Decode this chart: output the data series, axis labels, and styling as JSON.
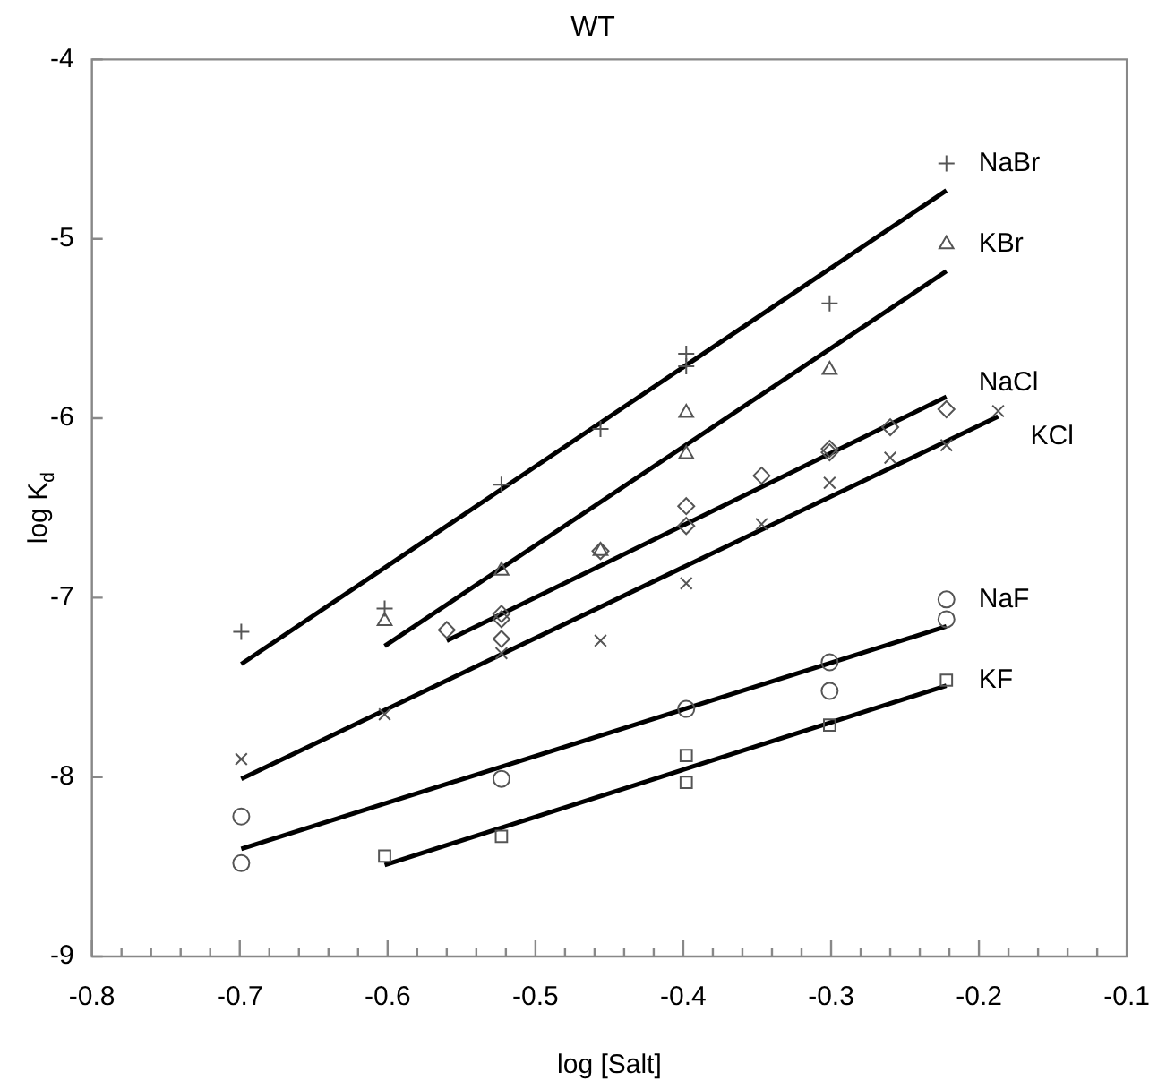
{
  "chart_data": {
    "type": "scatter",
    "title": "WT",
    "xlabel": "log [Salt]",
    "ylabel": "log K$_{d}$",
    "xlim": [
      -0.8,
      -0.1
    ],
    "xticks": [
      -0.8,
      {
        "value": -0.78,
        "label": null
      },
      {
        "value": -0.76,
        "label": null
      },
      {
        "value": -0.74,
        "label": null
      },
      {
        "value": -0.72,
        "label": null
      },
      -0.7,
      {
        "value": -0.68,
        "label": null
      },
      {
        "value": -0.66,
        "label": null
      },
      {
        "value": -0.64,
        "label": null
      },
      {
        "value": -0.62,
        "label": null
      },
      -0.6,
      {
        "value": -0.58,
        "label": null
      },
      {
        "value": -0.56,
        "label": null
      },
      {
        "value": -0.54,
        "label": null
      },
      {
        "value": -0.52,
        "label": null
      },
      -0.5,
      {
        "value": -0.48,
        "label": null
      },
      {
        "value": -0.46,
        "label": null
      },
      {
        "value": -0.44,
        "label": null
      },
      {
        "value": -0.42,
        "label": null
      },
      -0.4,
      {
        "value": -0.38,
        "label": null
      },
      {
        "value": -0.36,
        "label": null
      },
      {
        "value": -0.34,
        "label": null
      },
      {
        "value": -0.32,
        "label": null
      },
      -0.3,
      {
        "value": -0.28,
        "label": null
      },
      {
        "value": -0.26,
        "label": null
      },
      {
        "value": -0.24,
        "label": null
      },
      {
        "value": -0.22,
        "label": null
      },
      -0.2,
      {
        "value": -0.18,
        "label": null
      },
      {
        "value": -0.16,
        "label": null
      },
      {
        "value": -0.14,
        "label": null
      },
      {
        "value": -0.12,
        "label": null
      },
      -0.1
    ],
    "ylim": [
      -9,
      -4
    ],
    "yticks": [
      -9,
      -8,
      -7,
      -6,
      -5,
      -4
    ],
    "series": [
      {
        "type": "scatter",
        "name": "NaBr",
        "marker": "cross",
        "color": "#555555",
        "x": [
          -0.699,
          -0.602,
          -0.523,
          -0.456,
          -0.398,
          -0.398,
          -0.301,
          -0.222
        ],
        "values": [
          -7.19,
          -7.06,
          -6.37,
          -6.06,
          -5.64,
          -5.71,
          -5.36,
          -4.58
        ]
      },
      {
        "type": "scatter",
        "name": "KBr",
        "marker": "triangle",
        "color": "#555555",
        "x": [
          -0.602,
          -0.523,
          -0.456,
          -0.398,
          -0.398,
          -0.301,
          -0.222
        ],
        "values": [
          -7.13,
          -6.85,
          -6.74,
          -5.97,
          -6.2,
          -5.73,
          -5.03
        ]
      },
      {
        "type": "scatter",
        "name": "NaCl",
        "marker": "diamond",
        "color": "#555555",
        "x": [
          -0.56,
          -0.523,
          -0.523,
          -0.523,
          -0.456,
          -0.398,
          -0.398,
          -0.347,
          -0.301,
          -0.301,
          -0.26,
          -0.222
        ],
        "values": [
          -7.18,
          -7.09,
          -7.12,
          -7.23,
          -6.74,
          -6.49,
          -6.6,
          -6.32,
          -6.17,
          -6.19,
          -6.05,
          -5.95
        ]
      },
      {
        "type": "scatter",
        "name": "KCl",
        "marker": "x",
        "color": "#555555",
        "x": [
          -0.699,
          -0.602,
          -0.523,
          -0.456,
          -0.398,
          -0.347,
          -0.301,
          -0.26,
          -0.222,
          -0.187
        ],
        "values": [
          -7.9,
          -7.65,
          -7.31,
          -7.24,
          -6.92,
          -6.59,
          -6.36,
          -6.22,
          -6.15,
          -5.96
        ]
      },
      {
        "type": "scatter",
        "name": "NaF",
        "marker": "circle",
        "color": "#555555",
        "x": [
          -0.699,
          -0.699,
          -0.523,
          -0.398,
          -0.301,
          -0.301,
          -0.222,
          -0.222
        ],
        "values": [
          -8.22,
          -8.48,
          -8.01,
          -7.62,
          -7.36,
          -7.52,
          -7.01,
          -7.12
        ]
      },
      {
        "type": "scatter",
        "name": "KF",
        "marker": "square",
        "color": "#555555",
        "x": [
          -0.602,
          -0.523,
          -0.398,
          -0.398,
          -0.301,
          -0.222
        ],
        "values": [
          -8.44,
          -8.33,
          -7.88,
          -8.03,
          -7.71,
          -7.46
        ]
      },
      {
        "type": "line",
        "marker": "none",
        "color": "#000000",
        "x": [
          -0.699,
          -0.222
        ],
        "values": [
          -7.37,
          -4.73
        ]
      },
      {
        "type": "line",
        "marker": "none",
        "color": "#000000",
        "x": [
          -0.602,
          -0.222
        ],
        "values": [
          -7.27,
          -5.18
        ]
      },
      {
        "type": "line",
        "marker": "none",
        "color": "#000000",
        "x": [
          -0.56,
          -0.222
        ],
        "values": [
          -7.24,
          -5.88
        ]
      },
      {
        "type": "line",
        "marker": "none",
        "color": "#000000",
        "x": [
          -0.699,
          -0.187
        ],
        "values": [
          -8.01,
          -5.99
        ]
      },
      {
        "type": "line",
        "marker": "none",
        "color": "#000000",
        "x": [
          -0.699,
          -0.222
        ],
        "values": [
          -8.4,
          -7.16
        ]
      },
      {
        "type": "line",
        "marker": "none",
        "color": "#000000",
        "x": [
          -0.602,
          -0.222
        ],
        "values": [
          -8.49,
          -7.49
        ]
      }
    ]
  }
}
